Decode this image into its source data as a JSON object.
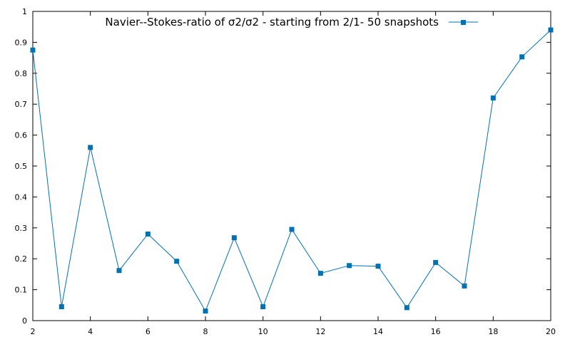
{
  "chart_data": {
    "type": "line",
    "title": "",
    "xlabel": "",
    "ylabel": "",
    "xlim": [
      2,
      20
    ],
    "ylim": [
      0,
      1
    ],
    "x_ticks": [
      "2",
      "4",
      "6",
      "8",
      "10",
      "12",
      "14",
      "16",
      "18",
      "20"
    ],
    "y_ticks": [
      "0",
      "0.1",
      "0.2",
      "0.3",
      "0.4",
      "0.5",
      "0.6",
      "0.7",
      "0.8",
      "0.9",
      "1"
    ],
    "grid": false,
    "legend_position": "top-right",
    "series": [
      {
        "name": "Navier--Stokes-ratio of σ2/σ2 - starting from 2/1- 50 snapshots",
        "color": "#0072b2",
        "marker": "square",
        "x": [
          2,
          3,
          4,
          5,
          6,
          7,
          8,
          9,
          10,
          11,
          12,
          13,
          14,
          15,
          16,
          17,
          18,
          19,
          20
        ],
        "values": [
          0.875,
          0.045,
          0.56,
          0.162,
          0.28,
          0.192,
          0.031,
          0.268,
          0.045,
          0.295,
          0.153,
          0.178,
          0.176,
          0.042,
          0.188,
          0.112,
          0.72,
          0.853,
          0.94
        ]
      }
    ]
  }
}
